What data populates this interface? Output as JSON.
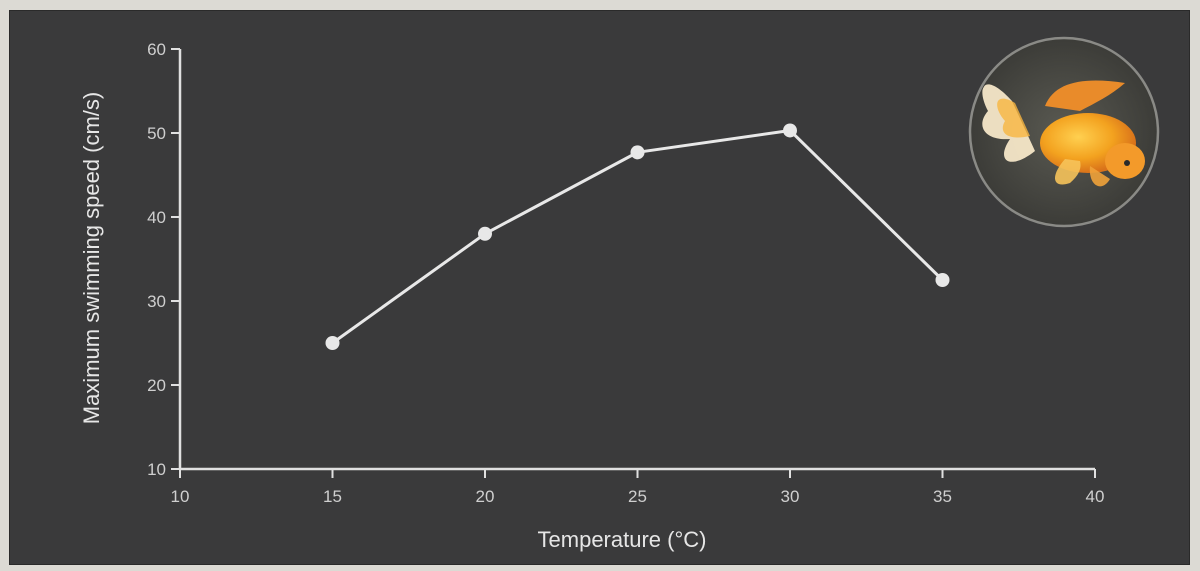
{
  "chart_data": {
    "type": "line",
    "title": "",
    "xlabel": "Temperature (°C)",
    "ylabel": "Maximum swimming speed (cm/s)",
    "xlim": [
      10,
      40
    ],
    "ylim": [
      10,
      60
    ],
    "xticks": [
      10,
      15,
      20,
      25,
      30,
      35,
      40
    ],
    "yticks": [
      10,
      20,
      30,
      40,
      50,
      60
    ],
    "grid": false,
    "series": [
      {
        "x": [
          15,
          20,
          25,
          30,
          35
        ],
        "y": [
          25,
          38,
          47.7,
          50.3,
          32.5
        ]
      }
    ],
    "colors": {
      "background": "#3a3a3b",
      "line": "#e8e8e8",
      "axis": "#e0e0e0"
    },
    "decorations": [
      "goldfish-photo"
    ]
  }
}
